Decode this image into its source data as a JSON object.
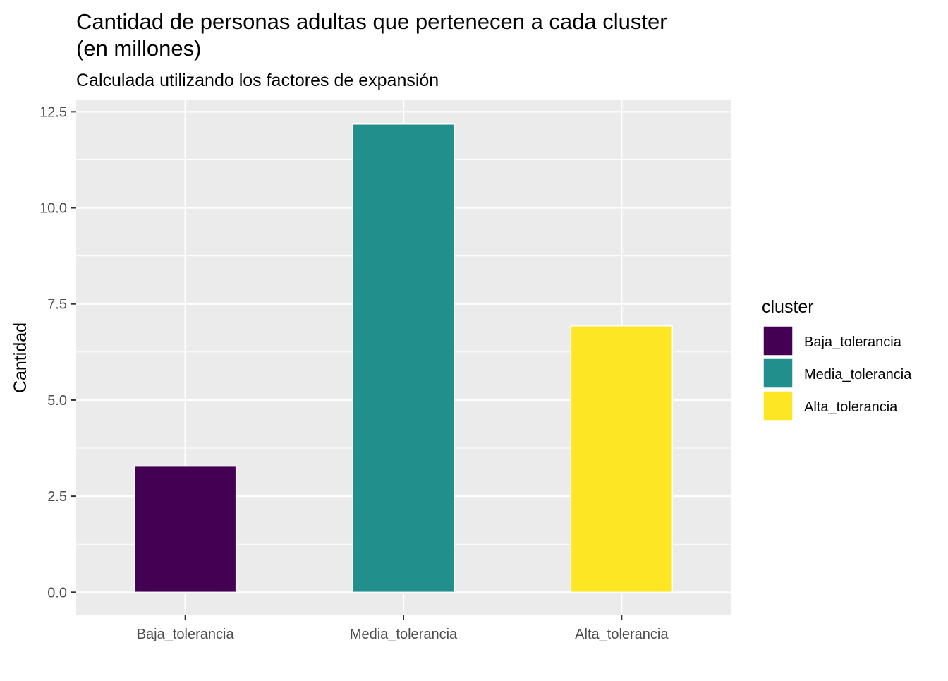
{
  "chart_data": {
    "type": "bar",
    "title": "Cantidad de personas adultas que pertenecen a cada cluster\n(en millones)",
    "subtitle": "Calculada utilizando los factores de expansión",
    "xlabel": "",
    "ylabel": "Cantidad",
    "categories": [
      "Baja_tolerancia",
      "Media_tolerancia",
      "Alta_tolerancia"
    ],
    "values": [
      3.28,
      12.18,
      6.93
    ],
    "ylim": [
      -0.6,
      12.8
    ],
    "yticks": [
      0.0,
      2.5,
      5.0,
      7.5,
      10.0,
      12.5
    ],
    "ytick_labels": [
      "0.0",
      "2.5",
      "5.0",
      "7.5",
      "10.0",
      "12.5"
    ],
    "grid": true,
    "legend": {
      "title": "cluster",
      "position": "right",
      "entries": [
        "Baja_tolerancia",
        "Media_tolerancia",
        "Alta_tolerancia"
      ]
    },
    "colors": {
      "Baja_tolerancia": "#440154",
      "Media_tolerancia": "#21908C",
      "Alta_tolerancia": "#FDE725",
      "panel_background": "#EBEBEB",
      "grid": "#FFFFFF",
      "text": "#000000",
      "tick_text": "#4D4D4D"
    }
  }
}
